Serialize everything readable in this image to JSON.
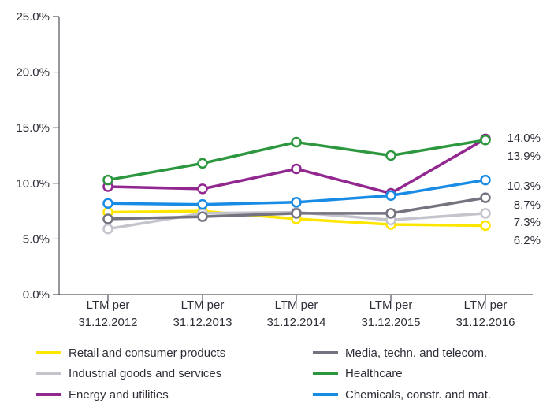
{
  "chart_data": {
    "type": "line",
    "title": "",
    "xlabel": "",
    "ylabel": "",
    "ylim": [
      0,
      25
    ],
    "grid": false,
    "legend_position": "bottom",
    "y_ticks": [
      "0.0%",
      "5.0%",
      "10.0%",
      "15.0%",
      "20.0%",
      "25.0%"
    ],
    "categories": [
      {
        "line1": "LTM per",
        "line2": "31.12.2012"
      },
      {
        "line1": "LTM per",
        "line2": "31.12.2013"
      },
      {
        "line1": "LTM per",
        "line2": "31.12.2014"
      },
      {
        "line1": "LTM per",
        "line2": "31.12.2015"
      },
      {
        "line1": "LTM per",
        "line2": "31.12.2016"
      }
    ],
    "series": [
      {
        "name": "Retail and consumer products",
        "color": "#ffe600",
        "values": [
          7.4,
          7.5,
          6.8,
          6.3,
          6.2
        ],
        "end_label": "6.2%"
      },
      {
        "name": "Industrial goods and services",
        "color": "#c4c4cd",
        "values": [
          5.9,
          7.3,
          7.4,
          6.7,
          7.3
        ],
        "end_label": "7.3%"
      },
      {
        "name": "Energy and utilities",
        "color": "#91278f",
        "values": [
          9.7,
          9.5,
          11.3,
          9.1,
          14.0
        ],
        "end_label": "14.0%"
      },
      {
        "name": "Media, techn. and telecom.",
        "color": "#747480",
        "values": [
          6.8,
          7.0,
          7.3,
          7.3,
          8.7
        ],
        "end_label": "8.7%"
      },
      {
        "name": "Healthcare",
        "color": "#2c973e",
        "values": [
          10.3,
          11.8,
          13.7,
          12.5,
          13.9
        ],
        "end_label": "13.9%"
      },
      {
        "name": "Chemicals, constr. and mat.",
        "color": "#188ce5",
        "values": [
          8.2,
          8.1,
          8.3,
          8.9,
          10.3
        ],
        "end_label": "10.3%"
      }
    ]
  }
}
